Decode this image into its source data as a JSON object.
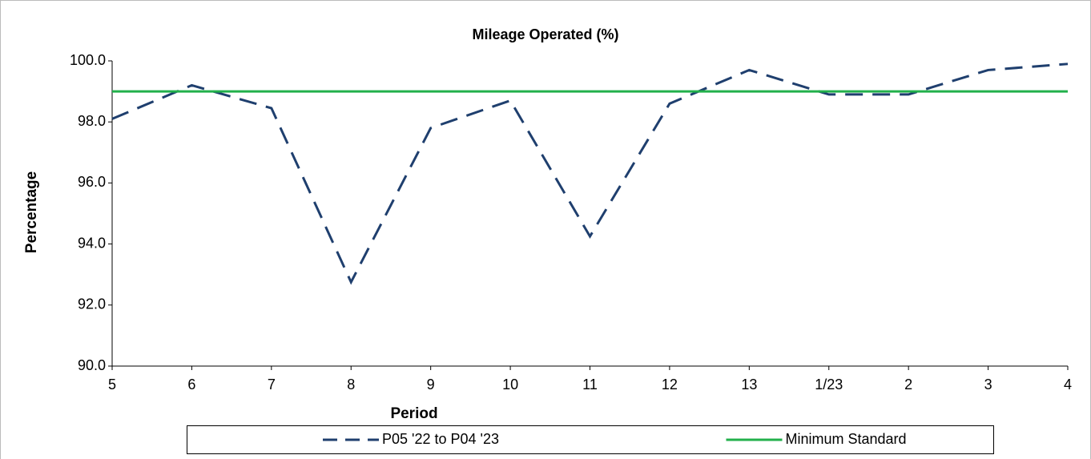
{
  "chart_data": {
    "type": "line",
    "title": "Mileage Operated (%)",
    "x_label": "Period",
    "y_label": "Percentage",
    "categories": [
      "5",
      "6",
      "7",
      "8",
      "9",
      "10",
      "11",
      "12",
      "13",
      "1/23",
      "2",
      "3",
      "4"
    ],
    "series": [
      {
        "name": "P05 '22 to P04 '23",
        "color": "#1f3f6e",
        "style": "dashed",
        "values": [
          98.1,
          99.2,
          98.45,
          92.75,
          97.8,
          98.7,
          94.25,
          98.6,
          99.7,
          98.9,
          98.9,
          99.7,
          99.9
        ]
      },
      {
        "name": "Minimum Standard",
        "color": "#22b04b",
        "style": "solid",
        "values": [
          99.0,
          99.0,
          99.0,
          99.0,
          99.0,
          99.0,
          99.0,
          99.0,
          99.0,
          99.0,
          99.0,
          99.0,
          99.0
        ]
      }
    ],
    "ylim": [
      90,
      100
    ],
    "yticks": [
      {
        "value": 90,
        "label": "90.0"
      },
      {
        "value": 92,
        "label": "92.0"
      },
      {
        "value": 94,
        "label": "94.0"
      },
      {
        "value": 96,
        "label": "96.0"
      },
      {
        "value": 98,
        "label": "98.0"
      },
      {
        "value": 100,
        "label": "100.0"
      }
    ],
    "grid": false,
    "legend": "bottom"
  }
}
